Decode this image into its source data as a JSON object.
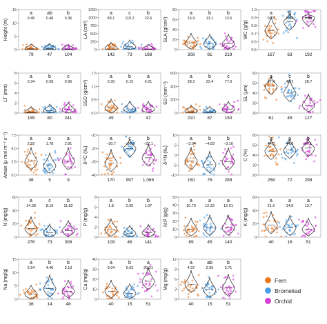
{
  "species_colors": {
    "Fern": "#ee7a22",
    "Bromeliad": "#4a9ee8",
    "Orchid": "#d43ed9"
  },
  "legend": [
    {
      "label": "Fern",
      "color": "#ee7a22"
    },
    {
      "label": "Bromeliad",
      "color": "#4a9ee8"
    },
    {
      "label": "Orchid",
      "color": "#d43ed9"
    }
  ],
  "chart_data": [
    {
      "type": "violin",
      "ylabel": "Height (m)",
      "ylim": [
        0,
        15
      ],
      "yticks": [
        "0",
        "5",
        "10",
        "15"
      ],
      "ytick_values": [
        0,
        5,
        10,
        15
      ],
      "groups": [
        "Fern",
        "Bromeliad",
        "Orchid"
      ],
      "letters": [
        "a",
        "ab",
        "b"
      ],
      "means": [
        "0.46",
        "0.48",
        "0.36"
      ],
      "n": [
        "79",
        "47",
        "104"
      ],
      "medians": [
        0.3,
        0.4,
        0.2
      ]
    },
    {
      "type": "violin",
      "ylabel": "LA (cm²)",
      "ylim": [
        0,
        1250
      ],
      "yticks": [
        "0",
        "250",
        "500",
        "750",
        "1000",
        "1250"
      ],
      "ytick_values": [
        0,
        250,
        500,
        750,
        1000,
        1250
      ],
      "groups": [
        "Fern",
        "Bromeliad",
        "Orchid"
      ],
      "letters": [
        "a",
        "c",
        "b"
      ],
      "means": [
        "83.1",
        "110.2",
        "22.6"
      ],
      "n": [
        "142",
        "73",
        "188"
      ],
      "medians": [
        50,
        90,
        15
      ]
    },
    {
      "type": "violin",
      "ylabel": "SLA (g/cm²)",
      "ylim": [
        0,
        80
      ],
      "yticks": [
        "0",
        "20",
        "40",
        "60",
        "80"
      ],
      "ytick_values": [
        0,
        20,
        40,
        60,
        80
      ],
      "groups": [
        "Fern",
        "Bromeliad",
        "Orchid"
      ],
      "letters": [
        "a",
        "b",
        "b"
      ],
      "means": [
        "15.9",
        "13.1",
        "13.5"
      ],
      "n": [
        "308",
        "81",
        "219"
      ],
      "medians": [
        13,
        12,
        12
      ]
    },
    {
      "type": "violin",
      "ylabel": "WC (g/g)",
      "ylim": [
        0.5,
        1.0
      ],
      "yticks": [
        "0.5",
        "0.6",
        "0.7",
        "0.8",
        "0.9",
        "1.0"
      ],
      "ytick_values": [
        0.5,
        0.6,
        0.7,
        0.8,
        0.9,
        1.0
      ],
      "groups": [
        "Fern",
        "Bromeliad",
        "Orchid"
      ],
      "letters": [
        "a",
        "b",
        "c"
      ],
      "means": [
        "0.73",
        "0.84",
        "0.89"
      ],
      "n": [
        "167",
        "63",
        "192"
      ],
      "medians": [
        0.74,
        0.85,
        0.9
      ]
    },
    {
      "type": "violin",
      "ylabel": "LT (mm)",
      "ylim": [
        0,
        8
      ],
      "yticks": [
        "0",
        "2",
        "4",
        "6",
        "8"
      ],
      "ytick_values": [
        0,
        2,
        4,
        6,
        8
      ],
      "groups": [
        "Fern",
        "Bromeliad",
        "Orchid"
      ],
      "letters": [
        "a",
        "b",
        "c"
      ],
      "means": [
        "0.34",
        "0.58",
        "0.96"
      ],
      "n": [
        "155",
        "80",
        "241"
      ],
      "medians": [
        0.25,
        0.5,
        0.7
      ]
    },
    {
      "type": "violin",
      "ylabel": "SSD (g/cm³)",
      "ylim": [
        0,
        1.5
      ],
      "yticks": [
        "0.0",
        "0.5",
        "1.0",
        "1.5"
      ],
      "ytick_values": [
        0,
        0.5,
        1.0,
        1.5
      ],
      "groups": [
        "Fern",
        "Bromeliad",
        "Orchid"
      ],
      "letters": [
        "a",
        "b",
        "a"
      ],
      "means": [
        "0.30",
        "0.15",
        "0.21"
      ],
      "n": [
        "49",
        "7",
        "47"
      ],
      "medians": [
        0.2,
        0.15,
        0.15
      ]
    },
    {
      "type": "violin",
      "ylabel": "SD (mm⁻²)",
      "ylim": [
        0,
        600
      ],
      "yticks": [
        "0",
        "200",
        "400",
        "600"
      ],
      "ytick_values": [
        0,
        200,
        400,
        600
      ],
      "groups": [
        "Fern",
        "Bromeliad",
        "Orchid"
      ],
      "letters": [
        "a",
        "b",
        "c"
      ],
      "means": [
        "38.3",
        "22.4",
        "77.0"
      ],
      "n": [
        "210",
        "87",
        "150"
      ],
      "medians": [
        30,
        20,
        60
      ]
    },
    {
      "type": "violin",
      "ylabel": "SL (μm)",
      "ylim": [
        20,
        60
      ],
      "yticks": [
        "20",
        "30",
        "40",
        "50",
        "60"
      ],
      "ytick_values": [
        20,
        30,
        40,
        50,
        60
      ],
      "groups": [
        "Fern",
        "Bromeliad",
        "Orchid"
      ],
      "letters": [
        "a",
        "c",
        "b"
      ],
      "means": [
        "47.4",
        "40.2",
        "28.7"
      ],
      "n": [
        "61",
        "45",
        "127"
      ],
      "medians": [
        47,
        40,
        28
      ]
    },
    {
      "type": "violin",
      "ylabel": "Amax (μ mol m⁻² s⁻¹)",
      "ylim": [
        0,
        7.5
      ],
      "yticks": [
        "0.0",
        "2.5",
        "5.0",
        "7.5"
      ],
      "ytick_values": [
        0,
        2.5,
        5,
        7.5
      ],
      "groups": [
        "Fern",
        "Bromeliad",
        "Orchid"
      ],
      "letters": [
        "a",
        "a",
        "a"
      ],
      "means": [
        "2.92",
        "1.78",
        "2.81"
      ],
      "n": [
        "36",
        "5",
        "9"
      ],
      "medians": [
        2.6,
        1.8,
        2.6
      ]
    },
    {
      "type": "violin",
      "ylabel": "δ¹³C (‰)",
      "ylim": [
        -40,
        -10
      ],
      "yticks": [
        "-40",
        "-30",
        "-20",
        "-10"
      ],
      "ytick_values": [
        -40,
        -30,
        -20,
        -10
      ],
      "groups": [
        "Fern",
        "Bromeliad",
        "Orchid"
      ],
      "letters": [
        "a",
        "c",
        "b"
      ],
      "means": [
        "−30.7",
        "−20.3",
        "−27.1"
      ],
      "n": [
        "170",
        "997",
        "1,065"
      ],
      "medians": [
        -31,
        -20,
        -27
      ]
    },
    {
      "type": "violin",
      "ylabel": "δ¹⁵N (‰)",
      "ylim": [
        -10,
        10
      ],
      "yticks": [
        "-10",
        "-5",
        "0",
        "5",
        "10"
      ],
      "ytick_values": [
        -10,
        -5,
        0,
        5,
        10
      ],
      "groups": [
        "Fern",
        "Bromeliad",
        "Orchid"
      ],
      "letters": [
        "a",
        "b",
        "b"
      ],
      "means": [
        "−3.04",
        "−4.83",
        "−3.16"
      ],
      "n": [
        "150",
        "76",
        "289"
      ],
      "medians": [
        -3,
        -4.8,
        -3.2
      ]
    },
    {
      "type": "violin",
      "ylabel": "C (%)",
      "ylim": [
        20,
        60
      ],
      "yticks": [
        "20",
        "30",
        "40",
        "50",
        "60"
      ],
      "ytick_values": [
        20,
        30,
        40,
        50,
        60
      ],
      "groups": [
        "Fern",
        "Bromeliad",
        "Orchid"
      ],
      "letters": [
        "a",
        "a",
        "b"
      ],
      "means": [
        "44.3",
        "44.8",
        "47.1"
      ],
      "n": [
        "258",
        "72",
        "298"
      ],
      "medians": [
        44,
        45,
        47
      ]
    },
    {
      "type": "violin",
      "ylabel": "N (mg/g)",
      "ylim": [
        0,
        60
      ],
      "yticks": [
        "0",
        "20",
        "40",
        "60"
      ],
      "ytick_values": [
        0,
        20,
        40,
        60
      ],
      "groups": [
        "Fern",
        "Bromeliad",
        "Orchid"
      ],
      "letters": [
        "a",
        "c",
        "b"
      ],
      "means": [
        "14.38",
        "8.19",
        "11.82"
      ],
      "n": [
        "276",
        "73",
        "308"
      ],
      "medians": [
        13,
        7,
        10
      ]
    },
    {
      "type": "violin",
      "ylabel": "P (mg/g)",
      "ylim": [
        0,
        8
      ],
      "yticks": [
        "0",
        "2",
        "4",
        "6",
        "8"
      ],
      "ytick_values": [
        0,
        2,
        4,
        6,
        8
      ],
      "groups": [
        "Fern",
        "Bromeliad",
        "Orchid"
      ],
      "letters": [
        "a",
        "b",
        "b"
      ],
      "means": [
        "1.8",
        "0.95",
        "1.07"
      ],
      "n": [
        "109",
        "46",
        "141"
      ],
      "medians": [
        1.5,
        0.8,
        0.9
      ]
    },
    {
      "type": "violin",
      "ylabel": "N:P (g/g)",
      "ylim": [
        0,
        50
      ],
      "yticks": [
        "0",
        "10",
        "20",
        "30",
        "40",
        "50"
      ],
      "ytick_values": [
        0,
        10,
        20,
        30,
        40,
        50
      ],
      "groups": [
        "Fern",
        "Bromeliad",
        "Orchid"
      ],
      "letters": [
        "a",
        "a",
        "a"
      ],
      "means": [
        "10.79",
        "12.33",
        "12.91"
      ],
      "n": [
        "89",
        "45",
        "140"
      ],
      "medians": [
        10,
        12,
        12
      ]
    },
    {
      "type": "violin",
      "ylabel": "K (mg/g)",
      "ylim": [
        0,
        60
      ],
      "yticks": [
        "0",
        "20",
        "40",
        "60"
      ],
      "ytick_values": [
        0,
        20,
        40,
        60
      ],
      "groups": [
        "Fern",
        "Bromeliad",
        "Orchid"
      ],
      "letters": [
        "a",
        "a",
        "a"
      ],
      "means": [
        "21.6",
        "14.8",
        "13.7"
      ],
      "n": [
        "40",
        "16",
        "51"
      ],
      "medians": [
        18,
        14,
        12
      ]
    },
    {
      "type": "violin",
      "ylabel": "Na (mg/g)",
      "ylim": [
        0,
        15
      ],
      "yticks": [
        "0",
        "5",
        "10",
        "15"
      ],
      "ytick_values": [
        0,
        5,
        10,
        15
      ],
      "groups": [
        "Fern",
        "Bromeliad",
        "Orchid"
      ],
      "letters": [
        "a",
        "b",
        "b"
      ],
      "means": [
        "2.54",
        "4.40",
        "3.13"
      ],
      "n": [
        "36",
        "14",
        "48"
      ],
      "medians": [
        2,
        4,
        3
      ]
    },
    {
      "type": "violin",
      "ylabel": "Ca (mg/g)",
      "ylim": [
        0,
        40
      ],
      "yticks": [
        "0",
        "10",
        "20",
        "30",
        "40"
      ],
      "ytick_values": [
        0,
        10,
        20,
        30,
        40
      ],
      "groups": [
        "Fern",
        "Bromeliad",
        "Orchid"
      ],
      "letters": [
        "a",
        "b",
        "a"
      ],
      "means": [
        "9.04",
        "6.03",
        "20.21"
      ],
      "n": [
        "40",
        "15",
        "51"
      ],
      "medians": [
        8,
        6,
        18
      ]
    },
    {
      "type": "violin",
      "ylabel": "Mg (mg/g)",
      "ylim": [
        0,
        12
      ],
      "yticks": [
        "0",
        "3",
        "6",
        "9",
        "12"
      ],
      "ytick_values": [
        0,
        3,
        6,
        9,
        12
      ],
      "groups": [
        "Fern",
        "Bromeliad",
        "Orchid"
      ],
      "letters": [
        "a",
        "ab",
        "b"
      ],
      "means": [
        "4.97",
        "2.95",
        "3.71"
      ],
      "n": [
        "40",
        "15",
        "51"
      ],
      "medians": [
        4.5,
        2.8,
        3.4
      ]
    }
  ]
}
